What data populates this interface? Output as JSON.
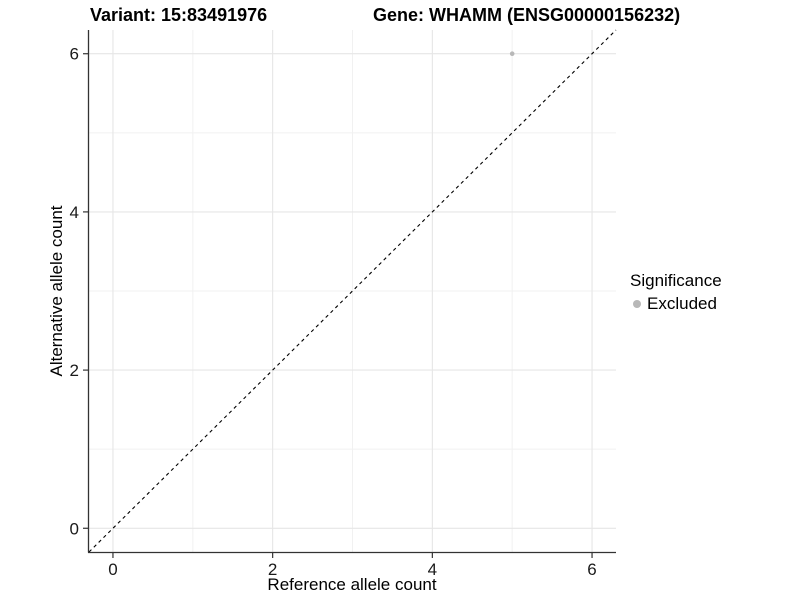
{
  "header": {
    "variant_title": "Variant: 15:83491976",
    "gene_title": "Gene: WHAMM (ENSG00000156232)"
  },
  "chart_data": {
    "type": "scatter",
    "xlabel": "Reference allele count",
    "ylabel": "Alternative allele count",
    "xlim": [
      -0.3,
      6.3
    ],
    "ylim": [
      -0.3,
      6.3
    ],
    "x_ticks": [
      0,
      2,
      4,
      6
    ],
    "x_minor_ticks": [
      1,
      3,
      5
    ],
    "y_ticks": [
      0,
      2,
      4,
      6
    ],
    "y_minor_ticks": [
      1,
      3,
      5
    ],
    "grid": "major and minor gridlines, light grey on white",
    "identity_line": {
      "from": [
        -0.3,
        -0.3
      ],
      "to": [
        6.3,
        6.3
      ],
      "style": "dashed",
      "color": "#000000"
    },
    "series": [
      {
        "name": "Excluded",
        "color": "#b8b8b8",
        "point_radius": 2.3,
        "points": [
          [
            5,
            6
          ]
        ]
      }
    ],
    "legend": {
      "title": "Significance",
      "position": "right",
      "items": [
        {
          "label": "Excluded",
          "color": "#b8b8b8"
        }
      ]
    },
    "colors": {
      "grid_major": "#e6e6e6",
      "grid_minor": "#f1f1f1",
      "axis_line": "#333333",
      "tick_text": "#1a1a1a"
    }
  }
}
